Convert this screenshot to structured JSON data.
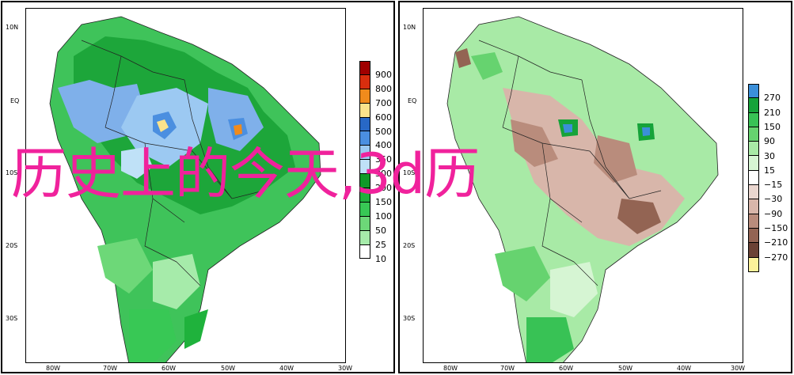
{
  "overlay_title": "历史上的今天,3d历",
  "axes": {
    "lat_labels": [
      "10N",
      "EQ",
      "10S",
      "20S",
      "30S"
    ],
    "lon_labels": [
      "80W",
      "70W",
      "60W",
      "50W",
      "40W",
      "30W"
    ]
  },
  "left_panel": {
    "colorbar": [
      {
        "label": "900",
        "color": "#a00000"
      },
      {
        "label": "800",
        "color": "#d92e0e"
      },
      {
        "label": "700",
        "color": "#f08b1c"
      },
      {
        "label": "600",
        "color": "#fbe38b"
      },
      {
        "label": "500",
        "color": "#2868c6"
      },
      {
        "label": "400",
        "color": "#4b8fe0"
      },
      {
        "label": "350",
        "color": "#9cc9f2"
      },
      {
        "label": "300",
        "color": "#bfe1f7"
      },
      {
        "label": "200",
        "color": "#109a28"
      },
      {
        "label": "150",
        "color": "#1fb23c"
      },
      {
        "label": "100",
        "color": "#38c855"
      },
      {
        "label": "50",
        "color": "#6dd878"
      },
      {
        "label": "25",
        "color": "#a6ebaa"
      },
      {
        "label": "10",
        "color": "#ffffff"
      }
    ]
  },
  "right_panel": {
    "colorbar": [
      {
        "label": "270",
        "color": "#3b8fd9"
      },
      {
        "label": "210",
        "color": "#16a33a"
      },
      {
        "label": "150",
        "color": "#38c255"
      },
      {
        "label": "90",
        "color": "#66d36f"
      },
      {
        "label": "30",
        "color": "#a8eaa6"
      },
      {
        "label": "15",
        "color": "#d6f5d3"
      },
      {
        "label": "−15",
        "color": "#ffffff"
      },
      {
        "label": "−30",
        "color": "#ead6cf"
      },
      {
        "label": "−90",
        "color": "#d8b6aa"
      },
      {
        "label": "−150",
        "color": "#b98c7c"
      },
      {
        "label": "−210",
        "color": "#936453"
      },
      {
        "label": "−270",
        "color": "#6b4235"
      },
      {
        "label": "",
        "color": "#fcf29a"
      }
    ]
  }
}
